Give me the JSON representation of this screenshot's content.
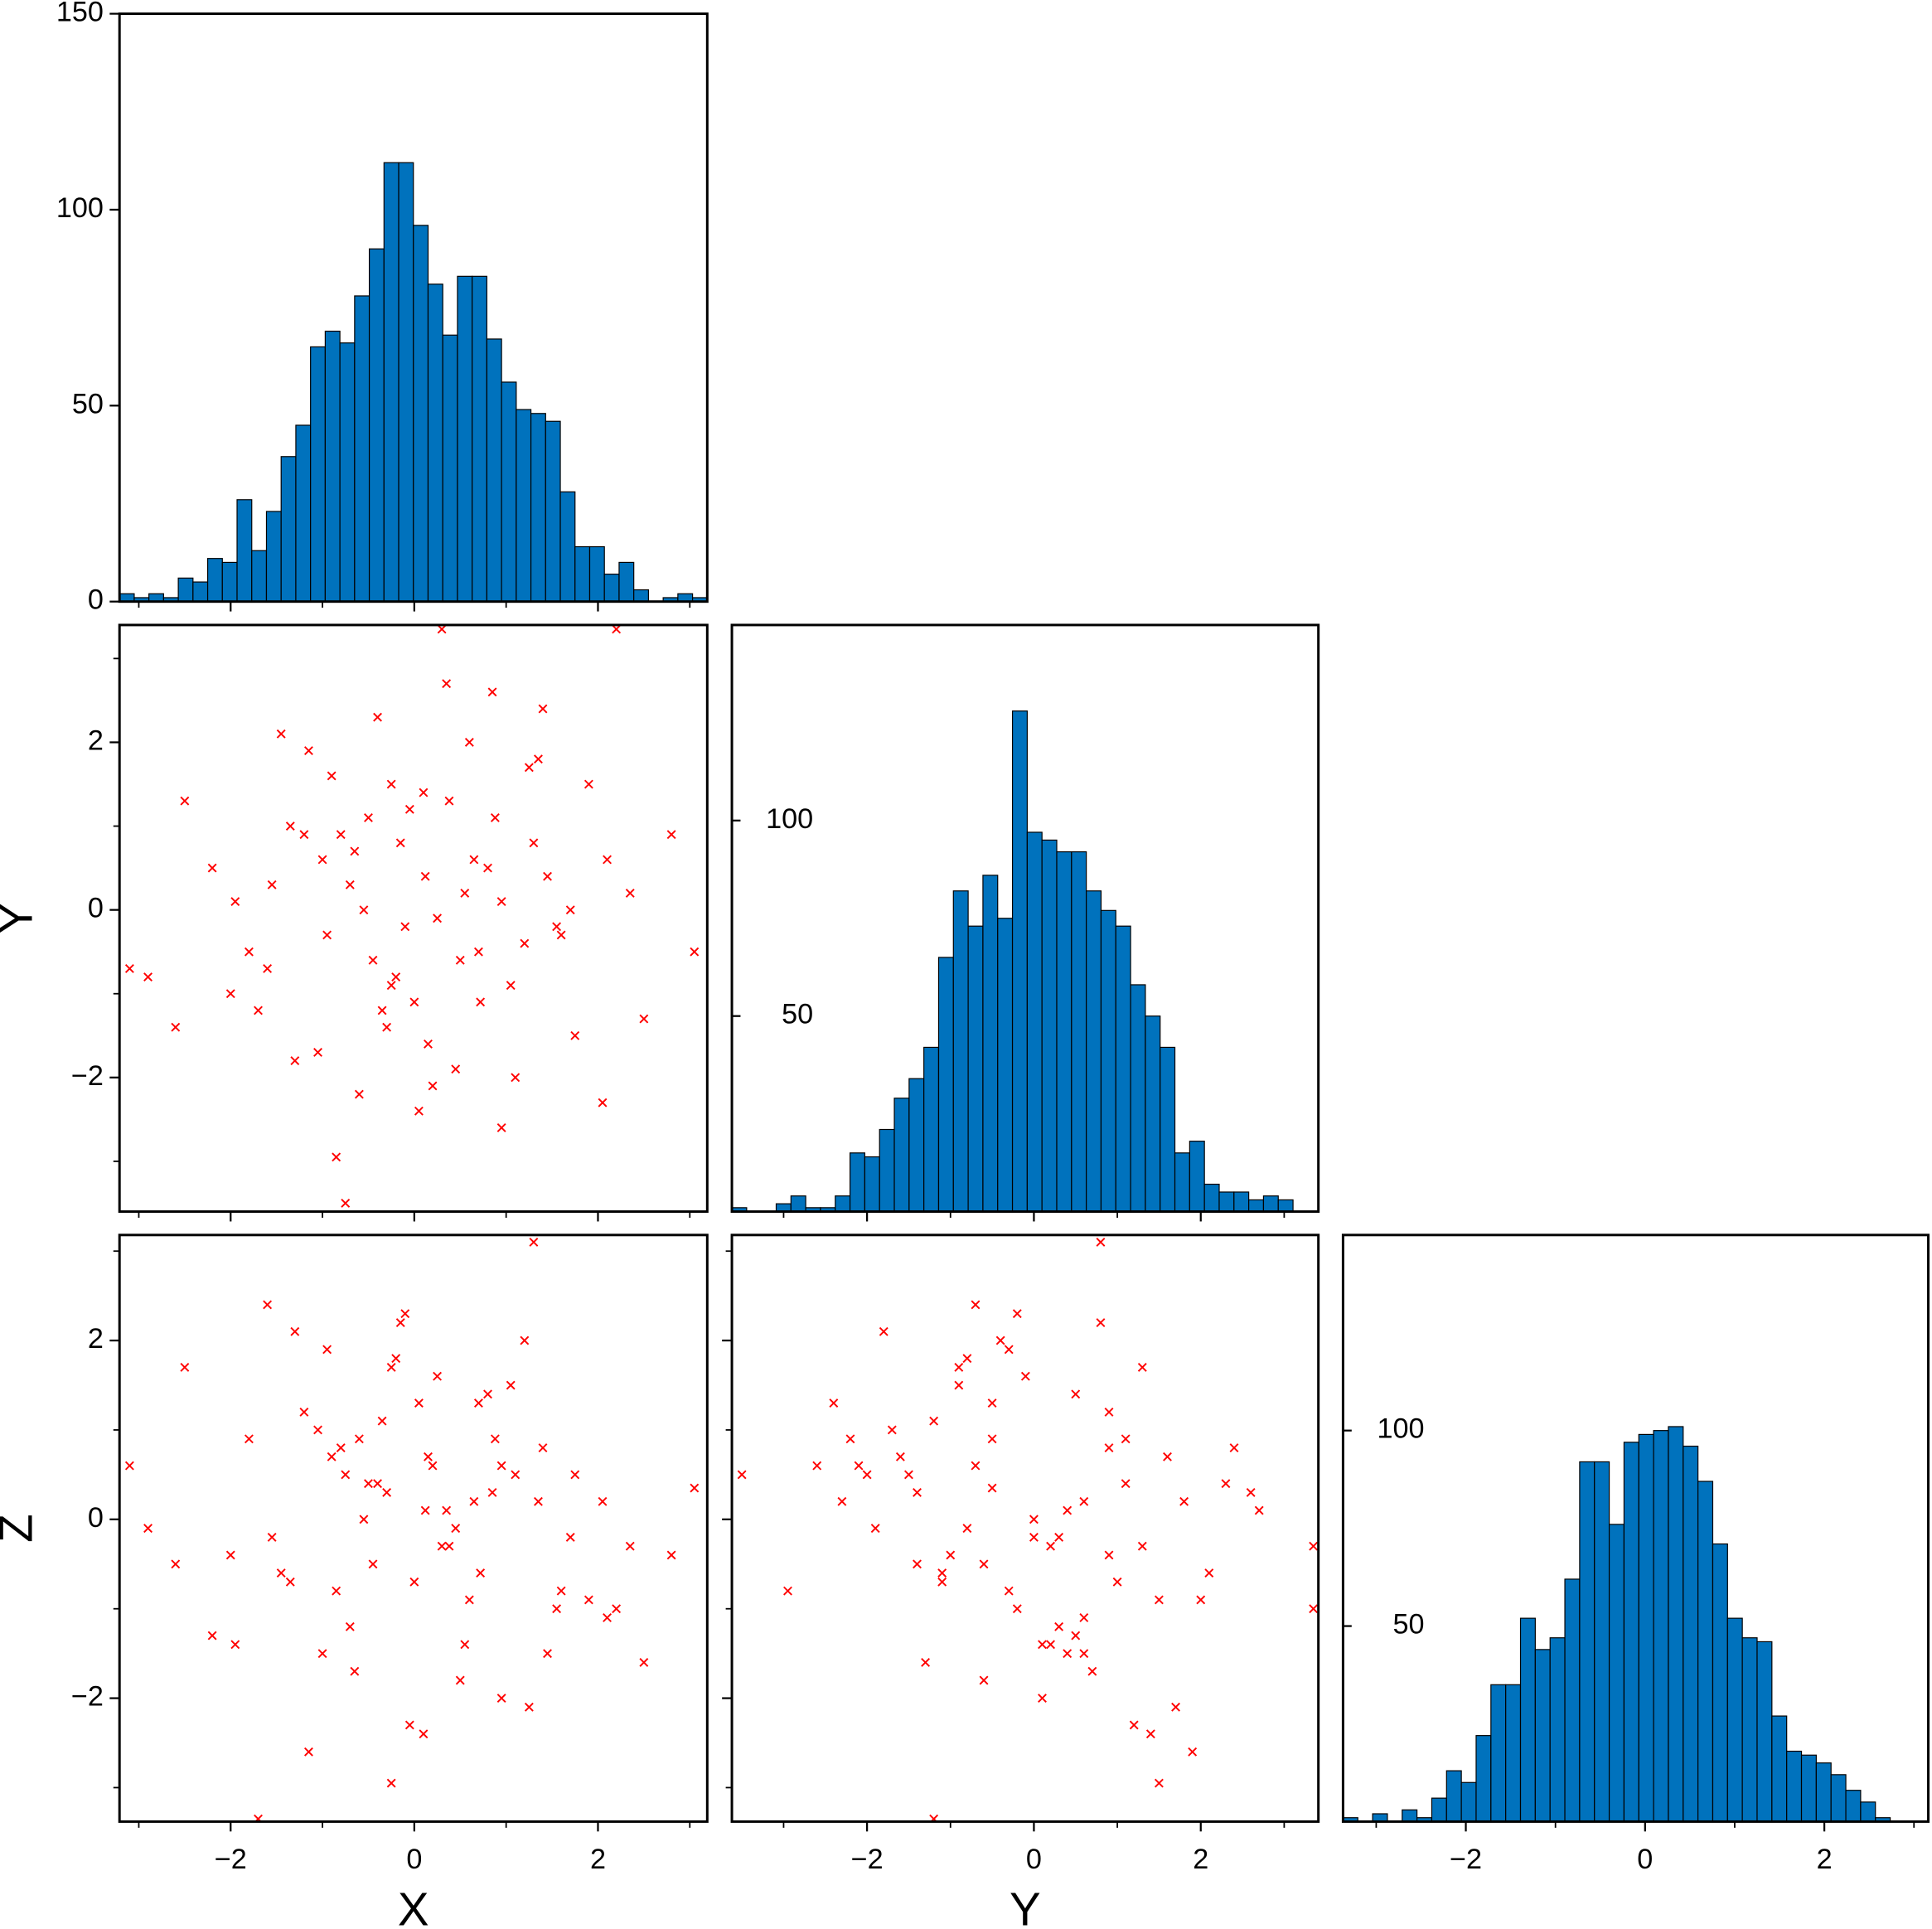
{
  "chart_data": [
    {
      "type": "histogram",
      "color": "#0072bd",
      "bins": [
        -3.21,
        -3.05,
        -2.89,
        -2.73,
        -2.57,
        -2.41,
        -2.25,
        -2.09,
        -1.93,
        -1.77,
        -1.61,
        -1.45,
        -1.29,
        -1.13,
        -0.97,
        -0.81,
        -0.65,
        -0.49,
        -0.33,
        -0.17,
        -0.01,
        0.15,
        0.31,
        0.47,
        0.63,
        0.79,
        0.95,
        1.11,
        1.27,
        1.43,
        1.59,
        1.75,
        1.91,
        2.07,
        2.23,
        2.39,
        2.55,
        2.71,
        2.87,
        3.03,
        3.19
      ],
      "values": [
        2,
        1,
        2,
        1,
        6,
        5,
        11,
        10,
        26,
        13,
        23,
        37,
        45,
        65,
        69,
        66,
        78,
        90,
        112,
        112,
        96,
        81,
        68,
        83,
        83,
        67,
        56,
        49,
        48,
        46,
        28,
        14,
        14,
        7,
        10,
        3,
        0,
        1,
        2,
        1
      ],
      "xlim": [
        -3.21,
        3.19
      ],
      "ylim": [
        0,
        150
      ],
      "xticks": [
        {
          "value": -2,
          "label": "−2"
        },
        0,
        2
      ],
      "xminorticks": [
        -3,
        -1,
        1,
        3
      ],
      "yticks": [
        0,
        50,
        100,
        150
      ]
    },
    {
      "type": "scatter",
      "color": "#ff0000",
      "marker": "x",
      "ylabel": "Y",
      "x": [
        -0.75,
        2.2,
        0.3,
        -3.1,
        3.05,
        -0.85,
        1.3,
        -1.7,
        -0.25,
        -2.5,
        0.12,
        -0.45,
        0.88,
        -1.2,
        1.6,
        -0.3,
        0.55,
        -0.9,
        1.05,
        -1.55,
        0.2,
        -0.65,
        1.35,
        -0.1,
        0.72,
        -1.8,
        2.1,
        -0.4,
        0.95,
        -1.05,
        0.38,
        -0.2,
        1.75,
        -2.2,
        0.6,
        -0.55,
        1.2,
        -1.35,
        0.05,
        2.5,
        -0.8,
        0.45,
        -1.6,
        1.45,
        -0.05,
        0.85,
        -2.0,
        0.25,
        1.9,
        -0.7,
        -0.35,
        1.1,
        -1.15,
        0.65,
        -0.95,
        2.35,
        0.15,
        -1.45,
        0.5,
        -0.15,
        1.55,
        -2.6,
        0.8,
        -0.6,
        1.25,
        -1.95,
        0.35,
        2.8,
        -0.25,
        0.95,
        -1.3,
        0.1,
        1.7,
        -0.5,
        -2.9,
        0.7,
        -1.0,
        1.4,
        0.0,
        2.05
      ],
      "y": [
        -3.5,
        3.35,
        3.35,
        -0.7,
        -0.5,
        -2.95,
        0.8,
        -1.2,
        1.5,
        1.3,
        0.4,
        -0.6,
        1.1,
        0.9,
        -0.3,
        -1.4,
        0.2,
        1.6,
        -0.9,
        0.3,
        -2.1,
        0.7,
        1.8,
        -0.2,
        -1.1,
        -0.5,
        0.6,
        2.3,
        0.1,
        -1.7,
        1.3,
        -0.8,
        -1.5,
        0.5,
        2.0,
        0.0,
        -0.4,
        1.0,
        -2.4,
        -1.3,
        0.9,
        -1.9,
        -0.7,
        0.4,
        1.2,
        2.6,
        -1.0,
        -0.1,
        1.5,
        0.3,
        -1.2,
        -2.0,
        1.9,
        0.6,
        -0.3,
        0.2,
        -1.6,
        2.1,
        -0.6,
        0.8,
        -0.2,
        -1.4,
        0.5,
        -2.2,
        1.7,
        0.1,
        2.7,
        0.9,
        -0.9,
        -2.6,
        -1.8,
        1.4,
        0.0,
        1.1,
        -0.8,
        -0.5,
        0.6,
        2.4,
        -1.1,
        -2.3
      ],
      "xlim": [
        -3.21,
        3.19
      ],
      "ylim": [
        -3.6,
        3.4
      ],
      "xticks": [
        {
          "value": -2,
          "label": "−2"
        },
        0,
        2
      ],
      "xminorticks": [
        -3,
        -1,
        1,
        3
      ],
      "yticks": [
        {
          "value": -2,
          "label": "−2"
        },
        0,
        2
      ],
      "yminorticks": [
        -3,
        -1,
        1,
        3
      ]
    },
    {
      "type": "histogram",
      "color": "#0072bd",
      "bins": [
        -3.62,
        -3.443,
        -3.266,
        -3.089,
        -2.912,
        -2.735,
        -2.558,
        -2.381,
        -2.204,
        -2.027,
        -1.85,
        -1.673,
        -1.496,
        -1.319,
        -1.142,
        -0.965,
        -0.788,
        -0.611,
        -0.434,
        -0.257,
        -0.08,
        0.097,
        0.274,
        0.451,
        0.628,
        0.805,
        0.982,
        1.159,
        1.336,
        1.513,
        1.69,
        1.867,
        2.044,
        2.221,
        2.398,
        2.575,
        2.752,
        2.929,
        3.106
      ],
      "values": [
        1,
        0,
        0,
        2,
        4,
        1,
        1,
        4,
        15,
        14,
        21,
        29,
        34,
        42,
        65,
        82,
        73,
        86,
        75,
        128,
        97,
        95,
        92,
        92,
        82,
        77,
        73,
        58,
        50,
        42,
        15,
        18,
        7,
        5,
        5,
        3,
        4,
        3
      ],
      "xlim": [
        -3.62,
        3.41
      ],
      "ylim": [
        0,
        150
      ],
      "xticks": [
        {
          "value": -2,
          "label": "−2"
        },
        0,
        2
      ],
      "xminorticks": [
        -3,
        -1,
        1,
        3
      ],
      "yticks": [
        50,
        100
      ]
    },
    {
      "type": "scatter",
      "color": "#ff0000",
      "marker": "x",
      "xlabel": "X",
      "ylabel": "Z",
      "x": [
        -0.75,
        2.2,
        0.3,
        -3.1,
        3.05,
        -0.85,
        1.3,
        -1.7,
        -0.25,
        -2.5,
        0.12,
        -0.45,
        0.88,
        -1.2,
        1.6,
        -0.3,
        0.55,
        -0.9,
        1.05,
        -1.55,
        0.2,
        -0.65,
        1.35,
        -0.1,
        0.72,
        -1.8,
        2.1,
        -0.4,
        0.95,
        -1.05,
        0.38,
        -0.2,
        1.75,
        -2.2,
        0.6,
        -0.55,
        1.2,
        -1.35,
        0.05,
        2.5,
        -0.8,
        0.45,
        -1.6,
        1.45,
        -0.05,
        0.85,
        -2.0,
        0.25,
        1.9,
        -0.7,
        -0.35,
        1.1,
        -1.15,
        0.65,
        -0.95,
        2.35,
        0.15,
        -1.45,
        0.5,
        -0.15,
        1.55,
        -2.6,
        0.8,
        -0.6,
        1.25,
        -1.95,
        0.35,
        2.8,
        -0.25,
        0.95,
        -1.3,
        0.1,
        1.7,
        -0.5,
        -2.9,
        0.7,
        -1.0,
        1.4,
        0.0,
        2.05
      ],
      "y": [
        0.5,
        -1.0,
        -0.3,
        0.6,
        0.35,
        -0.8,
        3.1,
        -3.35,
        -2.95,
        1.7,
        0.1,
        -0.5,
        0.9,
        1.2,
        -0.8,
        0.3,
        -1.4,
        0.7,
        1.5,
        -0.2,
        0.6,
        -1.7,
        0.2,
        2.3,
        -0.6,
        0.9,
        -1.1,
        0.4,
        -2.0,
        1.0,
        -0.3,
        1.8,
        0.5,
        -1.3,
        -0.9,
        0.0,
        2.0,
        -0.7,
        1.3,
        -1.6,
        0.8,
        -0.1,
        2.4,
        -1.5,
        -2.3,
        0.3,
        -0.4,
        1.6,
        -0.9,
        -1.2,
        1.1,
        0.5,
        -2.6,
        0.2,
        1.9,
        -0.3,
        0.7,
        -0.6,
        -1.8,
        2.2,
        -1.0,
        -0.5,
        1.4,
        0.9,
        -2.1,
        -1.4,
        0.1,
        -0.4,
        1.7,
        0.6,
        2.1,
        -2.4,
        -0.2,
        0.4,
        -0.1,
        1.3,
        -1.5,
        0.8,
        -0.7,
        0.2
      ],
      "xlim": [
        -3.21,
        3.19
      ],
      "ylim": [
        -3.38,
        3.18
      ],
      "xticks": [
        {
          "value": -2,
          "label": "−2"
        },
        0,
        2
      ],
      "xminorticks": [
        -3,
        -1,
        1,
        3
      ],
      "yticks": [
        {
          "value": -2,
          "label": "−2"
        },
        0,
        2
      ],
      "yminorticks": [
        -3,
        -1,
        1,
        3
      ]
    },
    {
      "type": "scatter",
      "color": "#ff0000",
      "marker": "x",
      "xlabel": "Y",
      "x": [
        -3.5,
        3.35,
        3.35,
        -0.7,
        -0.5,
        -2.95,
        0.8,
        -1.2,
        1.5,
        1.3,
        0.4,
        -0.6,
        1.1,
        0.9,
        -0.3,
        -1.4,
        0.2,
        1.6,
        -0.9,
        0.3,
        -2.1,
        0.7,
        1.8,
        -0.2,
        -1.1,
        -0.5,
        0.6,
        2.3,
        0.1,
        -1.7,
        1.3,
        -0.8,
        -1.5,
        0.5,
        2.0,
        0.0,
        -0.4,
        1.0,
        -2.4,
        -1.3,
        0.9,
        -1.9,
        -0.7,
        0.4,
        1.2,
        2.6,
        -1.0,
        -0.1,
        1.5,
        0.3,
        -1.2,
        -2.0,
        1.9,
        0.6,
        -0.3,
        0.2,
        -1.6,
        2.1,
        -0.6,
        0.8,
        -0.2,
        -1.4,
        0.5,
        -2.2,
        1.7,
        0.1,
        2.7,
        0.9,
        -0.9,
        -2.6,
        -1.8,
        1.4,
        0.0,
        1.1,
        -0.8,
        -0.5,
        0.6,
        2.4,
        -1.1,
        -2.3
      ],
      "y": [
        0.5,
        -1.0,
        -0.3,
        0.6,
        0.35,
        -0.8,
        3.1,
        -3.35,
        -2.95,
        1.7,
        0.1,
        -0.5,
        0.9,
        1.2,
        -0.8,
        0.3,
        -1.4,
        0.7,
        1.5,
        -0.2,
        0.6,
        -1.7,
        0.2,
        2.3,
        -0.6,
        0.9,
        -1.1,
        0.4,
        -2.0,
        1.0,
        -0.3,
        1.8,
        0.5,
        -1.3,
        -0.9,
        0.0,
        2.0,
        -0.7,
        1.3,
        -1.6,
        0.8,
        -0.1,
        2.4,
        -1.5,
        -2.3,
        0.3,
        -0.4,
        1.6,
        -0.9,
        -1.2,
        1.1,
        0.5,
        -2.6,
        0.2,
        1.9,
        -0.3,
        0.7,
        -0.6,
        -1.8,
        2.2,
        -1.0,
        -0.5,
        1.4,
        0.9,
        -2.1,
        -1.4,
        0.1,
        -0.4,
        1.7,
        0.6,
        2.1,
        -2.4,
        -0.2,
        0.4,
        -0.1,
        1.3,
        -1.5,
        0.8,
        -0.7,
        0.2
      ],
      "xlim": [
        -3.62,
        3.41
      ],
      "ylim": [
        -3.38,
        3.18
      ],
      "xticks": [
        {
          "value": -2,
          "label": "−2"
        },
        0,
        2
      ],
      "xminorticks": [
        -3,
        -1,
        1,
        3
      ],
      "yticks": [
        -2,
        0,
        2
      ],
      "yminorticks": [
        -3,
        -1,
        1,
        3
      ]
    },
    {
      "type": "histogram",
      "color": "#0072bd",
      "bins": [
        -3.37,
        -3.205,
        -3.04,
        -2.875,
        -2.71,
        -2.545,
        -2.38,
        -2.215,
        -2.05,
        -1.885,
        -1.72,
        -1.555,
        -1.39,
        -1.225,
        -1.06,
        -0.895,
        -0.73,
        -0.565,
        -0.4,
        -0.235,
        -0.07,
        0.095,
        0.26,
        0.425,
        0.59,
        0.755,
        0.92,
        1.085,
        1.25,
        1.415,
        1.58,
        1.745,
        1.91,
        2.075,
        2.24,
        2.405,
        2.57,
        2.735
      ],
      "values": [
        1,
        0,
        2,
        0,
        3,
        1,
        6,
        13,
        10,
        22,
        35,
        35,
        52,
        44,
        47,
        62,
        92,
        92,
        76,
        97,
        99,
        100,
        101,
        96,
        87,
        71,
        52,
        47,
        46,
        27,
        18,
        17,
        15,
        12,
        8,
        5,
        1
      ],
      "xlim": [
        -3.37,
        3.16
      ],
      "ylim": [
        0,
        150
      ],
      "xticks": [
        {
          "value": -2,
          "label": "−2"
        },
        0,
        2
      ],
      "xminorticks": [
        -3,
        -1,
        1,
        3
      ],
      "yticks": [
        50,
        100
      ]
    }
  ]
}
